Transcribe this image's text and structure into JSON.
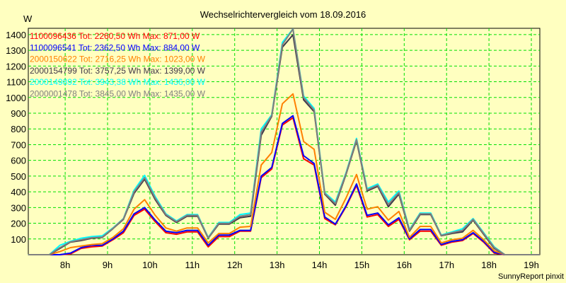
{
  "chart_data": {
    "type": "line",
    "title": "Wechselrichtervergleich vom 18.09.2016",
    "ylabel": "W",
    "xlabel": "",
    "footer": "SunnyReport pinxit",
    "xlim": [
      7.13,
      19.2
    ],
    "ylim": [
      0,
      1440
    ],
    "grid": true,
    "legend_position": "top-left",
    "x_ticks": [
      8,
      9,
      10,
      11,
      12,
      13,
      14,
      15,
      16,
      17,
      18,
      19
    ],
    "x_tick_labels": [
      "8h",
      "9h",
      "10h",
      "11h",
      "12h",
      "13h",
      "14h",
      "15h",
      "16h",
      "17h",
      "18h",
      "19h"
    ],
    "y_ticks": [
      100,
      200,
      300,
      400,
      500,
      600,
      700,
      800,
      900,
      1000,
      1100,
      1200,
      1300,
      1400
    ],
    "y_tick_labels": [
      "100",
      "200",
      "300",
      "400",
      "500",
      "600",
      "700",
      "800",
      "900",
      "1000",
      "1100",
      "1200",
      "1300",
      "1400"
    ],
    "x": [
      7.125,
      7.375,
      7.625,
      7.875,
      8.125,
      8.375,
      8.625,
      8.875,
      9.125,
      9.375,
      9.625,
      9.875,
      10.125,
      10.375,
      10.625,
      10.875,
      11.125,
      11.375,
      11.625,
      11.875,
      12.125,
      12.375,
      12.625,
      12.875,
      13.125,
      13.375,
      13.625,
      13.875,
      14.125,
      14.375,
      14.625,
      14.875,
      15.125,
      15.375,
      15.625,
      15.875,
      16.125,
      16.375,
      16.625,
      16.875,
      17.125,
      17.375,
      17.625,
      17.875,
      18.125,
      18.375,
      18.625,
      18.875,
      19.125,
      19.2
    ],
    "series": [
      {
        "name": "1100096436",
        "legend": "1100096436 Tot: 2260,50 Wh Max: 871,00 W",
        "color": "#ff0000",
        "values": [
          0,
          0,
          0,
          0,
          5,
          40,
          50,
          55,
          95,
          140,
          250,
          290,
          210,
          140,
          130,
          145,
          145,
          50,
          115,
          115,
          150,
          150,
          490,
          545,
          825,
          871,
          610,
          570,
          230,
          190,
          305,
          440,
          240,
          255,
          180,
          225,
          95,
          150,
          150,
          60,
          80,
          90,
          135,
          80,
          10,
          0,
          0,
          0,
          0,
          0
        ]
      },
      {
        "name": "1100096541",
        "legend": "1100096541 Tot: 2362,50 Wh Max: 884,00 W",
        "color": "#0000ff",
        "values": [
          0,
          0,
          0,
          0,
          10,
          45,
          60,
          60,
          100,
          150,
          260,
          300,
          220,
          150,
          140,
          155,
          155,
          60,
          125,
          125,
          155,
          155,
          500,
          555,
          835,
          884,
          630,
          580,
          240,
          195,
          310,
          450,
          250,
          265,
          190,
          235,
          100,
          160,
          160,
          65,
          85,
          95,
          140,
          85,
          15,
          0,
          0,
          0,
          0,
          0
        ]
      },
      {
        "name": "2000150622",
        "legend": "2000150622 Tot: 2716,25 Wh Max: 1023,00 W",
        "color": "#ff8000",
        "values": [
          0,
          0,
          0,
          20,
          45,
          55,
          65,
          70,
          110,
          165,
          290,
          350,
          250,
          170,
          150,
          170,
          170,
          75,
          135,
          135,
          175,
          180,
          570,
          650,
          960,
          1023,
          720,
          670,
          270,
          225,
          360,
          510,
          290,
          305,
          220,
          275,
          110,
          180,
          180,
          75,
          95,
          105,
          155,
          95,
          25,
          0,
          0,
          0,
          0,
          0
        ]
      },
      {
        "name": "2000154799",
        "legend": "2000154799 Tot: 3757,25 Wh Max: 1399,00 W",
        "color": "#403848",
        "values": [
          0,
          0,
          0,
          40,
          80,
          90,
          105,
          110,
          165,
          225,
          390,
          480,
          350,
          250,
          205,
          245,
          245,
          105,
          195,
          195,
          235,
          245,
          760,
          880,
          1320,
          1399,
          985,
          910,
          385,
          315,
          510,
          725,
          405,
          435,
          305,
          385,
          150,
          255,
          255,
          120,
          135,
          145,
          220,
          130,
          40,
          0,
          0,
          0,
          0,
          0
        ]
      },
      {
        "name": "2000149892",
        "legend": "2000149892 Tot: 3943,38 Wh Max: 1436,00 W",
        "color": "#00ffff",
        "values": [
          0,
          0,
          0,
          60,
          85,
          105,
          115,
          120,
          170,
          230,
          410,
          505,
          370,
          260,
          215,
          255,
          255,
          110,
          205,
          205,
          255,
          265,
          800,
          890,
          1350,
          1436,
          1010,
          930,
          395,
          335,
          520,
          740,
          420,
          450,
          335,
          405,
          160,
          265,
          265,
          125,
          145,
          165,
          230,
          140,
          50,
          0,
          0,
          0,
          0,
          0
        ]
      },
      {
        "name": "2000001478",
        "legend": "2000001478 Tot: 3845,00 Wh Max: 1435,00 W",
        "color": "#808080",
        "values": [
          0,
          0,
          0,
          45,
          82,
          95,
          108,
          112,
          167,
          228,
          400,
          490,
          360,
          255,
          210,
          250,
          250,
          107,
          200,
          200,
          245,
          255,
          780,
          885,
          1335,
          1435,
          1000,
          920,
          390,
          325,
          515,
          732,
          412,
          442,
          320,
          395,
          155,
          260,
          260,
          122,
          140,
          155,
          225,
          135,
          45,
          0,
          0,
          0,
          0,
          0
        ]
      }
    ]
  }
}
